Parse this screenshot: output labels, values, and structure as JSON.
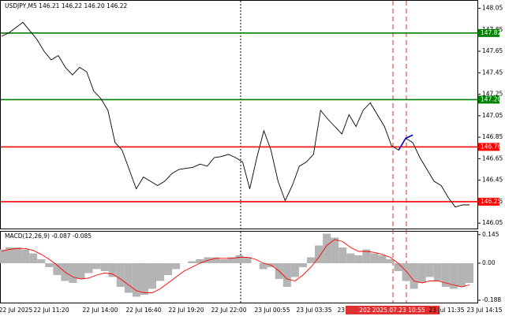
{
  "chart_data": [
    {
      "type": "line",
      "title": "USDJPY,M5  146.21 146.22 146.20 146.22",
      "series": [
        {
          "color": "#000000",
          "values": [
            147.79,
            147.82,
            147.87,
            147.92,
            147.84,
            147.76,
            147.65,
            147.57,
            147.61,
            147.5,
            147.43,
            147.5,
            147.46,
            147.28,
            147.21,
            147.1,
            146.8,
            146.73,
            146.55,
            146.37,
            146.48,
            146.44,
            146.4,
            146.44,
            146.51,
            146.55,
            146.56,
            146.57,
            146.6,
            146.58,
            146.66,
            146.67,
            146.69,
            146.66,
            146.62,
            146.37,
            146.66,
            146.91,
            146.73,
            146.44,
            146.26,
            146.4,
            146.58,
            146.62,
            146.69,
            147.1,
            147.02,
            146.95,
            146.88,
            147.06,
            146.95,
            147.1,
            147.17,
            147.06,
            146.95,
            146.77,
            146.73,
            146.84,
            146.8,
            146.66,
            146.55,
            146.44,
            146.4,
            146.29,
            146.2,
            146.22,
            146.22
          ]
        },
        {
          "color": "#0000cc",
          "values": [
            null,
            null,
            null,
            null,
            null,
            null,
            null,
            null,
            null,
            null,
            null,
            null,
            null,
            null,
            null,
            null,
            null,
            null,
            null,
            null,
            null,
            null,
            null,
            null,
            null,
            null,
            null,
            null,
            null,
            null,
            null,
            null,
            null,
            null,
            null,
            null,
            null,
            null,
            null,
            null,
            null,
            null,
            null,
            null,
            null,
            null,
            null,
            null,
            null,
            null,
            null,
            null,
            null,
            null,
            null,
            null,
            146.73,
            146.84,
            146.87,
            null,
            null,
            null,
            null,
            null,
            null,
            null,
            null
          ]
        }
      ],
      "ylim": [
        146.0,
        148.12
      ],
      "yticks": [
        148.05,
        147.85,
        147.65,
        147.45,
        147.25,
        147.05,
        146.85,
        146.65,
        146.45,
        146.25,
        146.05
      ],
      "levels": [
        {
          "value": 147.82,
          "color": "#008000"
        },
        {
          "value": 147.2,
          "label": "147.20",
          "color": "#008000"
        },
        {
          "value": 146.76,
          "color": "#ff0000"
        },
        {
          "value": 146.25,
          "color": "#ff0000"
        }
      ],
      "time_labels": [
        "22 Jul 2025",
        "22 Jul 11:20",
        "22 Jul 14:00",
        "22 Jul 16:40",
        "22 Jul 19:20",
        "22 Jul 22:00",
        "23 Jul 00:55",
        "23 Jul 03:35",
        "23 Jul 06:15",
        "202 2025.07.23 10:55",
        "23 Jul 11:35",
        "23 Jul 14:15"
      ]
    },
    {
      "type": "macd",
      "title": "MACD(12,26,9) -0.087 -0.085",
      "histogram": {
        "color": "#b4b4b4",
        "values": [
          0.07,
          0.08,
          0.08,
          0.07,
          0.05,
          0.02,
          -0.02,
          -0.06,
          -0.09,
          -0.1,
          -0.08,
          -0.05,
          -0.03,
          -0.04,
          -0.07,
          -0.12,
          -0.15,
          -0.17,
          -0.16,
          -0.13,
          -0.09,
          -0.06,
          -0.03,
          0.0,
          0.01,
          0.02,
          0.03,
          0.03,
          0.02,
          0.03,
          0.04,
          0.03,
          0.0,
          -0.03,
          -0.02,
          -0.08,
          -0.12,
          -0.07,
          -0.02,
          0.03,
          0.09,
          0.15,
          0.13,
          0.08,
          0.05,
          0.04,
          0.07,
          0.05,
          0.04,
          0.02,
          -0.04,
          -0.09,
          -0.13,
          -0.1,
          -0.07,
          -0.09,
          -0.12,
          -0.13,
          -0.12,
          -0.1
        ]
      },
      "signal": {
        "color": "#ff0000",
        "values": [
          0.06,
          0.07,
          0.075,
          0.075,
          0.065,
          0.045,
          0.02,
          -0.01,
          -0.045,
          -0.07,
          -0.08,
          -0.075,
          -0.06,
          -0.05,
          -0.055,
          -0.08,
          -0.11,
          -0.14,
          -0.15,
          -0.15,
          -0.13,
          -0.1,
          -0.07,
          -0.04,
          -0.02,
          0.0,
          0.015,
          0.025,
          0.025,
          0.025,
          0.03,
          0.03,
          0.02,
          0.0,
          -0.01,
          -0.04,
          -0.08,
          -0.09,
          -0.06,
          -0.02,
          0.03,
          0.09,
          0.12,
          0.11,
          0.08,
          0.06,
          0.06,
          0.055,
          0.045,
          0.03,
          0.0,
          -0.04,
          -0.09,
          -0.1,
          -0.09,
          -0.09,
          -0.1,
          -0.11,
          -0.12,
          -0.11
        ]
      },
      "ylim": [
        -0.2,
        0.16
      ],
      "yticks": [
        0.145,
        {
          "value": 0,
          "label": "0.00"
        },
        -0.188
      ]
    }
  ]
}
